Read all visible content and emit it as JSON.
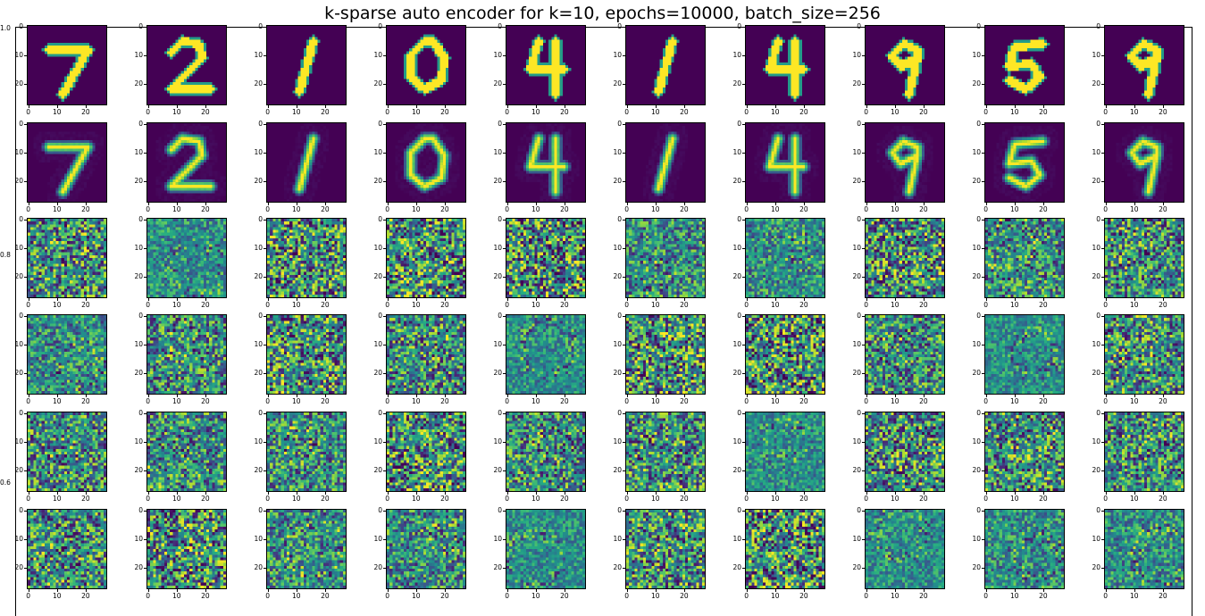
{
  "figure": {
    "title": "k-sparse auto encoder for k=10, epochs=10000, batch_size=256",
    "outer_axis_ticks": [
      "1.0",
      "0.8",
      "0.6"
    ]
  },
  "chart_data": {
    "type": "heatmap",
    "title": "k-sparse auto encoder for k=10, epochs=10000, batch_size=256",
    "colormap": "viridis",
    "colors": {
      "low": "#440154",
      "mid": "#21918c",
      "high": "#fde725"
    },
    "grid": {
      "rows": 6,
      "cols": 10,
      "image_size": 28
    },
    "row_contents": [
      "input digits",
      "reconstructions",
      "learned feature",
      "learned feature",
      "learned feature",
      "learned feature"
    ],
    "digits": [
      "7",
      "2",
      "1",
      "0",
      "4",
      "1",
      "4",
      "9",
      "5",
      "9"
    ],
    "x_ticks": [
      "0",
      "10",
      "20"
    ],
    "y_ticks": [
      "0",
      "10",
      "20"
    ],
    "xlim": [
      0,
      27
    ],
    "ylim": [
      27,
      0
    ],
    "outer_axis": {
      "ylim": [
        0,
        1
      ],
      "y_ticks": [
        "1.0",
        "0.8",
        "0.6"
      ]
    }
  }
}
